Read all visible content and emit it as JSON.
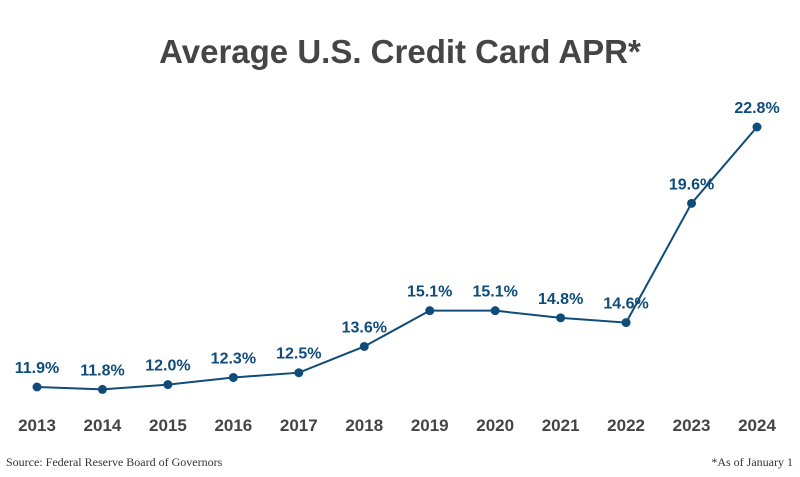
{
  "chart_data": {
    "type": "line",
    "title": "Average U.S. Credit Card APR*",
    "categories": [
      "2013",
      "2014",
      "2015",
      "2016",
      "2017",
      "2018",
      "2019",
      "2020",
      "2021",
      "2022",
      "2023",
      "2024"
    ],
    "series": [
      {
        "values": [
          11.9,
          11.8,
          12.0,
          12.3,
          12.5,
          13.6,
          15.1,
          15.1,
          14.8,
          14.6,
          19.6,
          22.8
        ]
      }
    ],
    "data_labels": [
      "11.9%",
      "11.8%",
      "12.0%",
      "12.3%",
      "12.5%",
      "13.6%",
      "15.1%",
      "15.1%",
      "14.8%",
      "14.6%",
      "19.6%",
      "22.8%"
    ],
    "xlabel": "",
    "ylabel": "",
    "y_axis_visible": false,
    "grid": false,
    "line_color": "#0f4c7a",
    "label_color": "#0f4c7a",
    "tick_color": "#444444"
  },
  "source": "Source: Federal Reserve Board of Governors",
  "footnote": "*As of January 1"
}
